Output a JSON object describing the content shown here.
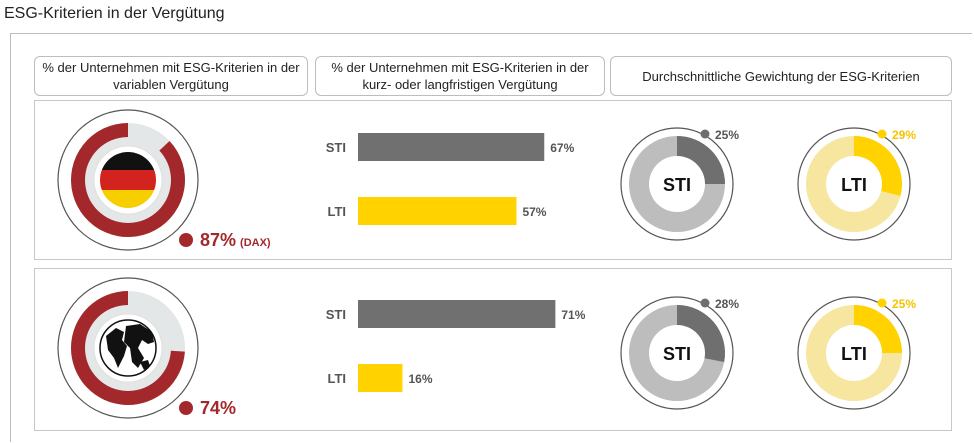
{
  "title": "ESG-Kriterien in der Vergütung",
  "headers": {
    "col1": "% der Unternehmen mit ESG-Kriterien in der variablen Vergütung",
    "col2": "% der Unternehmen mit ESG-Kriterien in der kurz- oder langfristigen Vergütung",
    "col3": "Durchschnittliche Gewichtung der ESG-Kriterien"
  },
  "colors": {
    "red": "#a3282b",
    "donut_track": "#e3e7e7",
    "bar_sti": "#707070",
    "bar_lti": "#ffd200",
    "sti_fill": "#6f6f6f",
    "sti_track": "#bdbdbd",
    "lti_fill": "#ffd200",
    "lti_track": "#f7e6a0",
    "lti_label": "#f5c400"
  },
  "chart_data": [
    {
      "type": "pie",
      "row": "Germany",
      "icon": "germany-flag-icon",
      "value": 87,
      "label": "87%",
      "suffix": "(DAX)"
    },
    {
      "type": "bar",
      "row": "Germany",
      "categories": [
        "STI",
        "LTI"
      ],
      "values": [
        67,
        57
      ],
      "labels": [
        "67%",
        "57%"
      ],
      "xlim": [
        0,
        100
      ]
    },
    {
      "type": "pie",
      "row": "Germany",
      "center_label": "STI",
      "value": 25,
      "label": "25%"
    },
    {
      "type": "pie",
      "row": "Germany",
      "center_label": "LTI",
      "value": 29,
      "label": "29%"
    },
    {
      "type": "pie",
      "row": "Global",
      "icon": "globe-icon",
      "value": 74,
      "label": "74%",
      "suffix": ""
    },
    {
      "type": "bar",
      "row": "Global",
      "categories": [
        "STI",
        "LTI"
      ],
      "values": [
        71,
        16
      ],
      "labels": [
        "71%",
        "16%"
      ],
      "xlim": [
        0,
        100
      ]
    },
    {
      "type": "pie",
      "row": "Global",
      "center_label": "STI",
      "value": 28,
      "label": "28%"
    },
    {
      "type": "pie",
      "row": "Global",
      "center_label": "LTI",
      "value": 25,
      "label": "25%"
    }
  ]
}
